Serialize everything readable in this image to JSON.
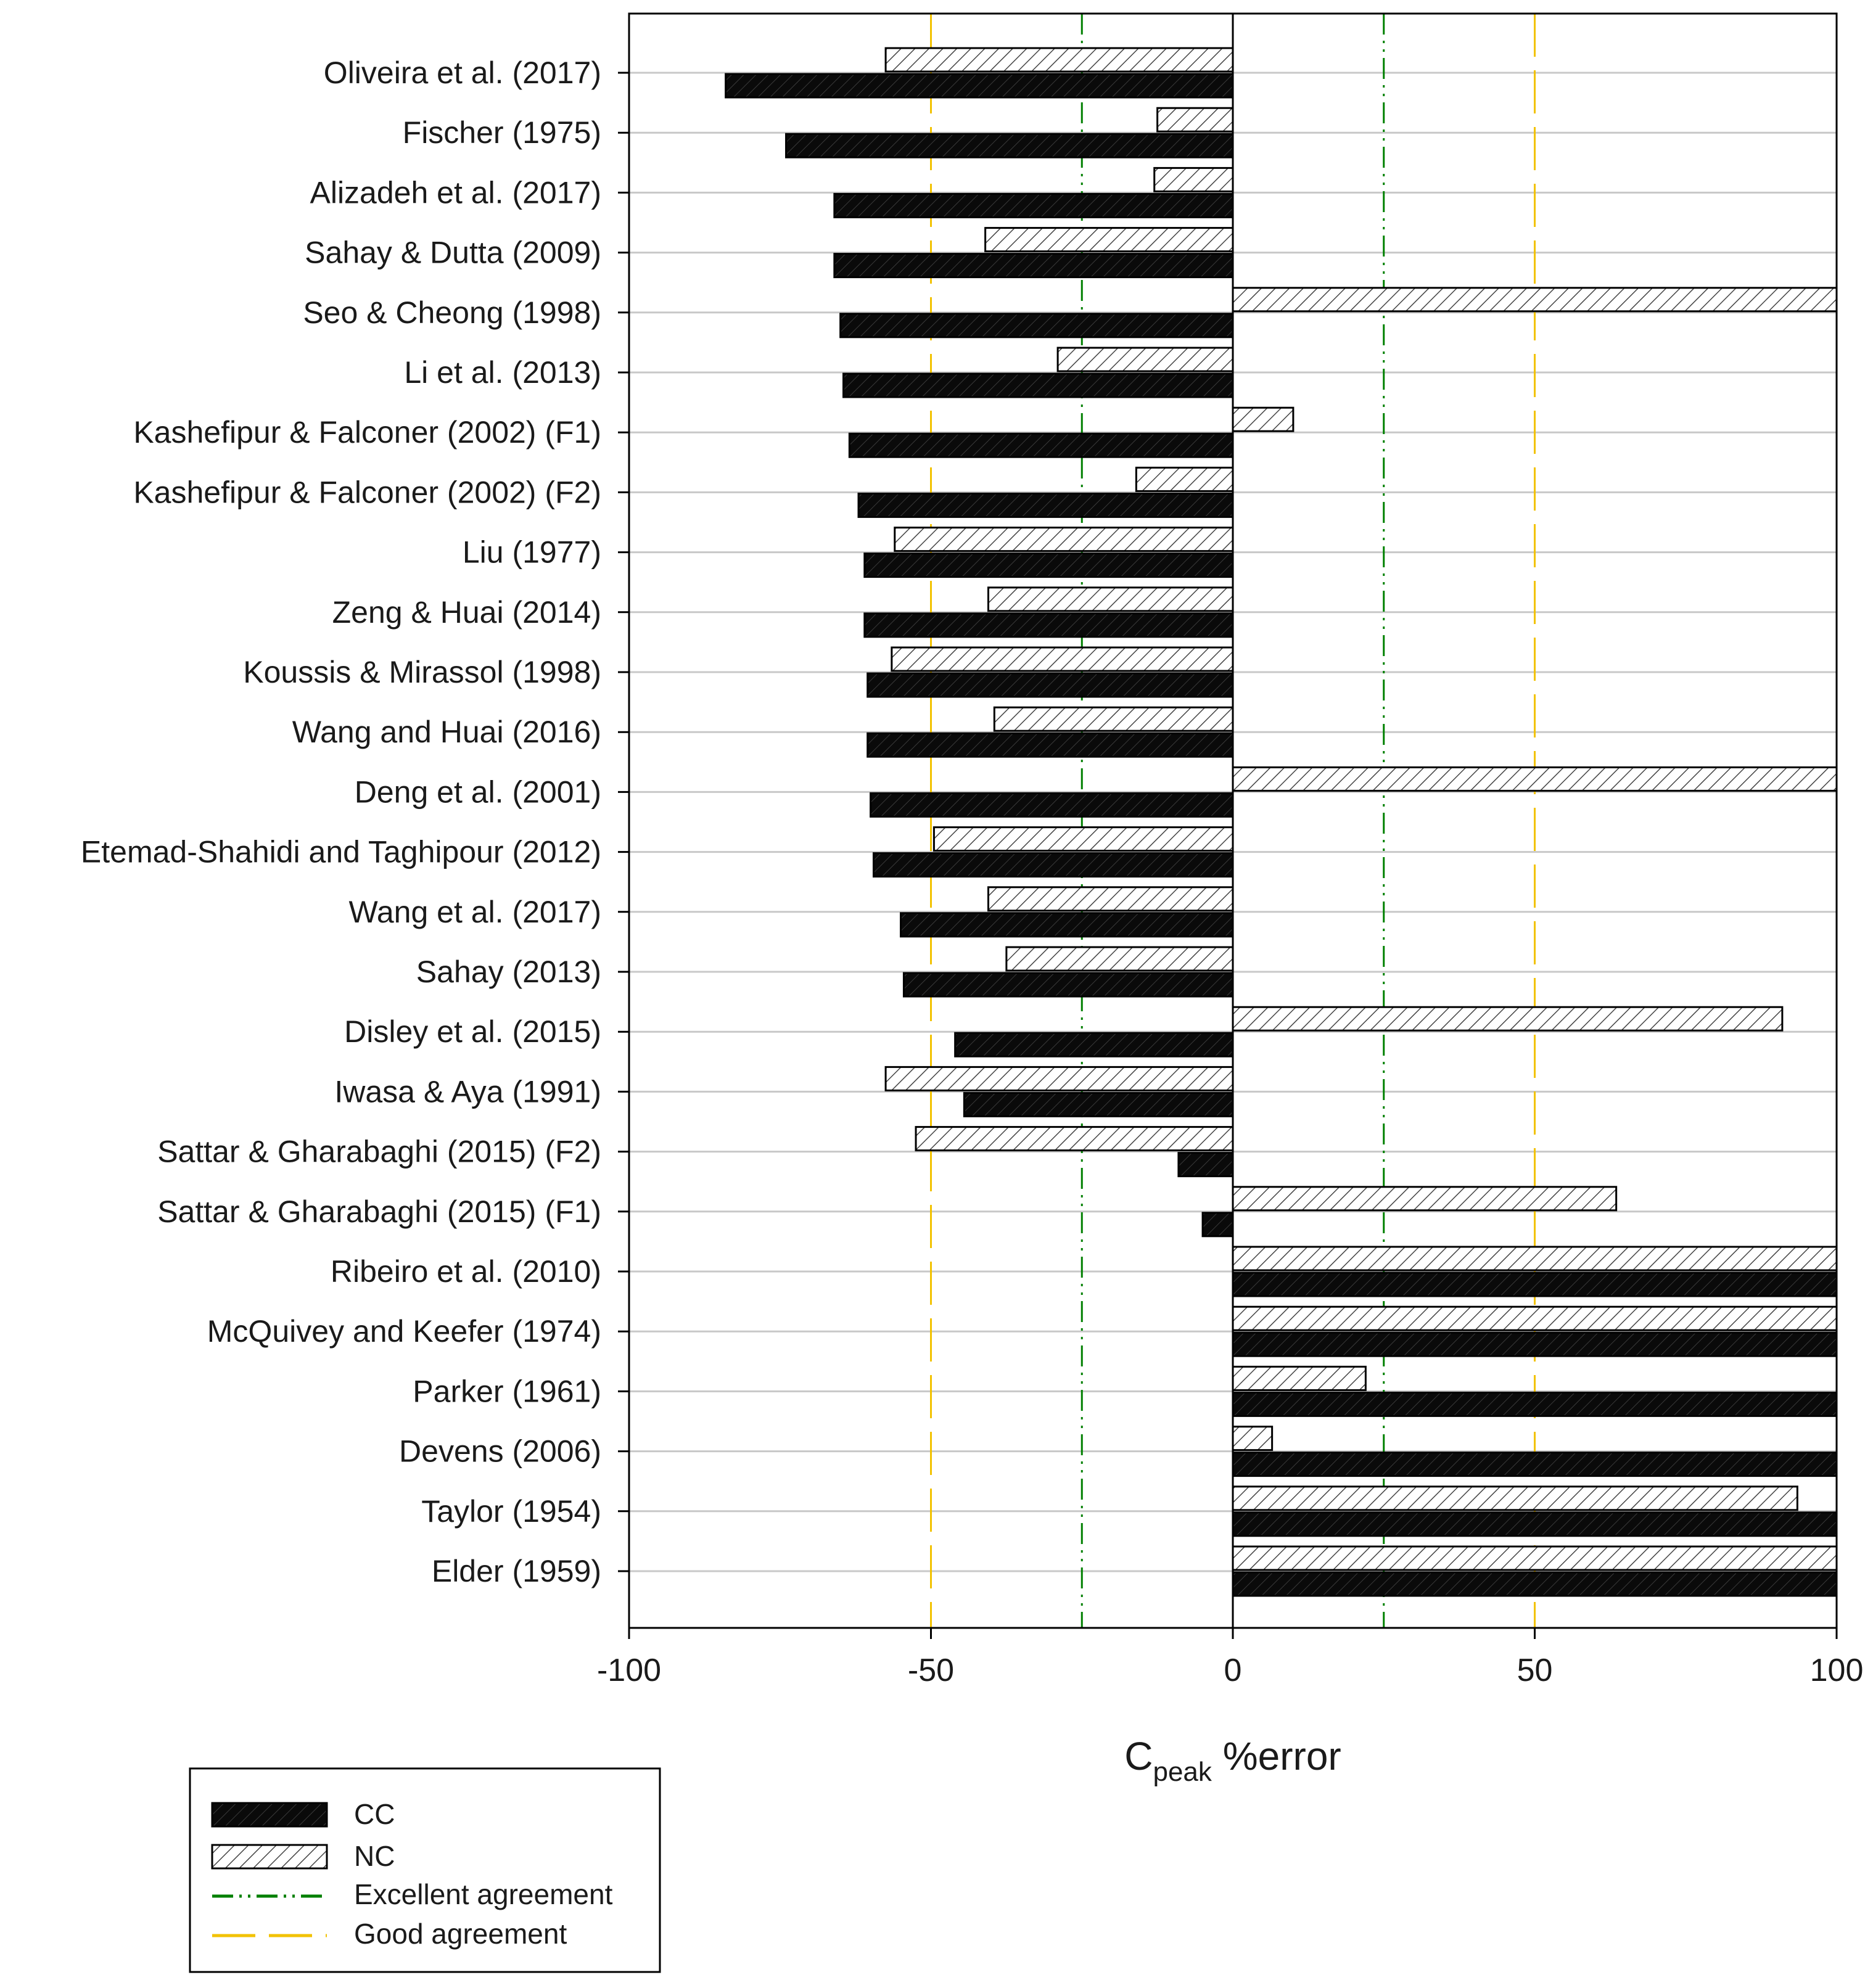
{
  "chart_data": {
    "type": "bar",
    "orientation": "horizontal",
    "categories": [
      "Oliveira et al. (2017)",
      "Fischer (1975)",
      "Alizadeh et al. (2017)",
      "Sahay & Dutta (2009)",
      "Seo & Cheong (1998)",
      "Li et al. (2013)",
      "Kashefipur & Falconer (2002) (F1)",
      "Kashefipur & Falconer (2002) (F2)",
      "Liu (1977)",
      "Zeng & Huai (2014)",
      "Koussis & Mirassol (1998)",
      "Wang and Huai (2016)",
      "Deng et al. (2001)",
      "Etemad-Shahidi and Taghipour (2012)",
      "Wang et al. (2017)",
      "Sahay (2013)",
      "Disley et al. (2015)",
      "Iwasa & Aya (1991)",
      "Sattar & Gharabaghi (2015) (F2)",
      "Sattar & Gharabaghi (2015) (F1)",
      "Ribeiro et al. (2010)",
      "McQuivey and Keefer (1974)",
      "Parker (1961)",
      "Devens (2006)",
      "Taylor (1954)",
      "Elder (1959)"
    ],
    "series": [
      {
        "name": "CC",
        "style": "solid",
        "values": [
          -84,
          -74,
          -66,
          -66,
          -65,
          -64.5,
          -63.5,
          -62,
          -61,
          -61,
          -60.5,
          -60.5,
          -60,
          -59.5,
          -55,
          -54.5,
          -46,
          -44.5,
          -9,
          -5,
          100,
          100,
          100,
          100,
          100,
          100
        ]
      },
      {
        "name": "NC",
        "style": "hatched",
        "values": [
          -57.5,
          -12.5,
          -13,
          -41,
          100,
          -29,
          10,
          -16,
          -56,
          -40.5,
          -56.5,
          -39.5,
          100,
          -49.5,
          -40.5,
          -37.5,
          91,
          -57.5,
          -52.5,
          63.5,
          100,
          100,
          22,
          6.5,
          93.5,
          100
        ]
      }
    ],
    "reference_lines": [
      {
        "name": "Excellent agreement",
        "values": [
          -25,
          25
        ],
        "color": "#008000",
        "style": "dash-dot-dot"
      },
      {
        "name": "Good agreement",
        "values": [
          -50,
          50
        ],
        "color": "#f2c200",
        "style": "dashed"
      }
    ],
    "xlim": [
      -100,
      100
    ],
    "xticks": [
      -100,
      -50,
      0,
      50,
      100
    ],
    "xtick_labels": [
      "-100",
      "-50",
      "0",
      "50",
      "100"
    ],
    "xlabel_main": "C",
    "xlabel_sub": "peak",
    "xlabel_rest": " %error",
    "ylabel": "",
    "grid": "horizontal",
    "legend": {
      "position": "bottom-left",
      "entries": [
        "CC",
        "NC",
        "Excellent agreement",
        "Good agreement"
      ]
    }
  }
}
